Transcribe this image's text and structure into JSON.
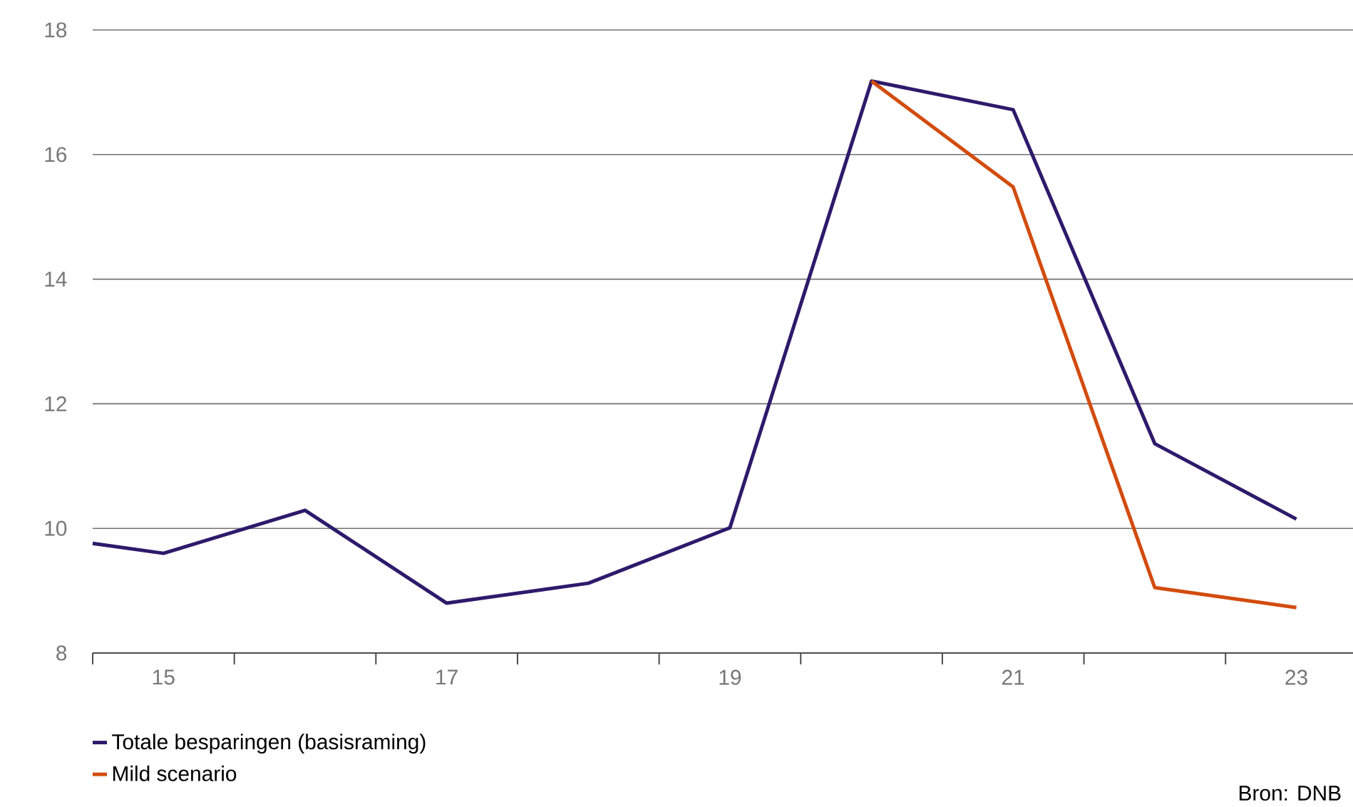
{
  "chart_data": {
    "type": "line",
    "x": [
      14.5,
      15,
      16,
      17,
      18,
      19,
      20,
      21,
      22,
      23
    ],
    "series": [
      {
        "name": "Totale besparingen (basisraming)",
        "color": "#2e1a6b",
        "values": [
          9.76,
          9.6,
          10.29,
          8.8,
          9.12,
          10.01,
          17.18,
          16.72,
          11.36,
          10.15
        ]
      },
      {
        "name": "Mild scenario",
        "color": "#d24c0e",
        "x": [
          20,
          21,
          22,
          23
        ],
        "values": [
          17.18,
          15.48,
          9.05,
          8.73
        ]
      }
    ],
    "xlim": [
      14.5,
      23.4
    ],
    "xticks": [
      {
        "value": 14.5,
        "label": null
      },
      {
        "value": 15,
        "label": "15"
      },
      {
        "value": 15.5,
        "label": null
      },
      {
        "value": 16.5,
        "label": null
      },
      {
        "value": 17,
        "label": "17"
      },
      {
        "value": 17.5,
        "label": null
      },
      {
        "value": 18.5,
        "label": null
      },
      {
        "value": 19,
        "label": "19"
      },
      {
        "value": 19.5,
        "label": null
      },
      {
        "value": 20.5,
        "label": null
      },
      {
        "value": 21,
        "label": "21"
      },
      {
        "value": 21.5,
        "label": null
      },
      {
        "value": 22.5,
        "label": null
      },
      {
        "value": 23,
        "label": "23"
      }
    ],
    "ylim": [
      8,
      18
    ],
    "yticks": [
      8,
      10,
      12,
      14,
      16,
      18
    ],
    "grid": "y",
    "legend": "bottom left",
    "annotations": [
      "Bron: DNB"
    ]
  }
}
